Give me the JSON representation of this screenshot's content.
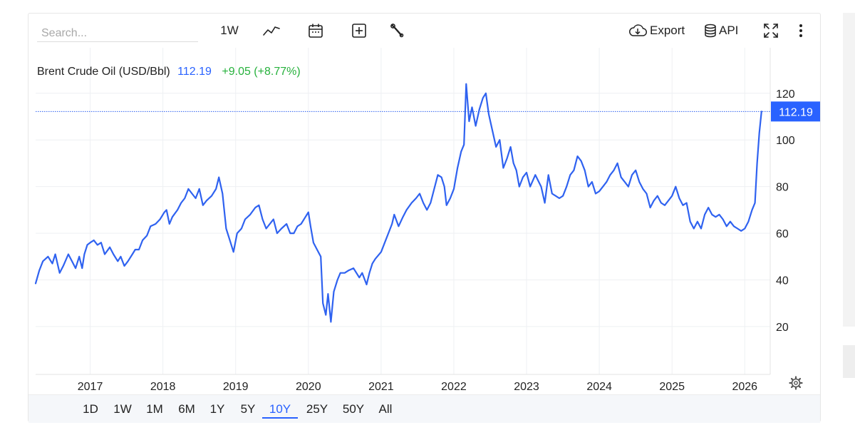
{
  "toolbar": {
    "search_placeholder": "Search...",
    "interval_label": "1W",
    "export_label": "Export",
    "api_label": "API",
    "icons": [
      "line-chart-icon",
      "calendar-icon",
      "add-square-icon",
      "wrench-icon",
      "cloud-download-icon",
      "database-icon",
      "fullscreen-icon",
      "more-vertical-icon"
    ]
  },
  "legend": {
    "name": "Brent Crude Oil (USD/Bbl)",
    "last": "112.19",
    "change": "+9.05 (+8.77%)"
  },
  "price_tag": "112.19",
  "ranges": {
    "items": [
      "1D",
      "1W",
      "1M",
      "6M",
      "1Y",
      "5Y",
      "10Y",
      "25Y",
      "50Y",
      "All"
    ],
    "active": "10Y"
  },
  "colors": {
    "line": "#2f62f0",
    "price_tag_bg": "#2962ff",
    "change_positive": "#26b13c",
    "last_value": "#2962ff",
    "grid": "#eef0f3"
  },
  "chart_data": {
    "type": "line",
    "title": "Brent Crude Oil (USD/Bbl)",
    "xlabel": "",
    "ylabel": "",
    "x_tick_labels": [
      "2017",
      "2018",
      "2019",
      "2020",
      "2021",
      "2022",
      "2023",
      "2024",
      "2025",
      "2026"
    ],
    "y_tick_labels": [
      "20",
      "40",
      "60",
      "80",
      "100",
      "120"
    ],
    "xlim": [
      2016.25,
      2026.35
    ],
    "ylim": [
      -0.5,
      139.5
    ],
    "grid": true,
    "last_value_line": 112.19,
    "series": [
      {
        "name": "Brent Crude Oil (USD/Bbl)",
        "points": [
          [
            2016.25,
            38.5
          ],
          [
            2016.3,
            44
          ],
          [
            2016.35,
            48
          ],
          [
            2016.42,
            50
          ],
          [
            2016.48,
            47
          ],
          [
            2016.52,
            51
          ],
          [
            2016.58,
            43
          ],
          [
            2016.63,
            46
          ],
          [
            2016.7,
            51
          ],
          [
            2016.75,
            48
          ],
          [
            2016.8,
            45
          ],
          [
            2016.85,
            50
          ],
          [
            2016.89,
            45
          ],
          [
            2016.92,
            51
          ],
          [
            2016.96,
            55
          ],
          [
            2017.0,
            56
          ],
          [
            2017.05,
            57
          ],
          [
            2017.1,
            55
          ],
          [
            2017.15,
            56
          ],
          [
            2017.2,
            51
          ],
          [
            2017.27,
            54
          ],
          [
            2017.32,
            51
          ],
          [
            2017.38,
            48
          ],
          [
            2017.42,
            50
          ],
          [
            2017.47,
            46
          ],
          [
            2017.52,
            48
          ],
          [
            2017.58,
            51
          ],
          [
            2017.62,
            53
          ],
          [
            2017.67,
            53
          ],
          [
            2017.72,
            57
          ],
          [
            2017.78,
            59
          ],
          [
            2017.83,
            63
          ],
          [
            2017.9,
            64
          ],
          [
            2017.96,
            66
          ],
          [
            2018.02,
            69
          ],
          [
            2018.05,
            70
          ],
          [
            2018.09,
            64
          ],
          [
            2018.13,
            67
          ],
          [
            2018.2,
            70
          ],
          [
            2018.25,
            73
          ],
          [
            2018.3,
            75
          ],
          [
            2018.35,
            79
          ],
          [
            2018.4,
            77
          ],
          [
            2018.45,
            75
          ],
          [
            2018.5,
            79
          ],
          [
            2018.55,
            72
          ],
          [
            2018.6,
            74
          ],
          [
            2018.67,
            76
          ],
          [
            2018.73,
            79
          ],
          [
            2018.77,
            84
          ],
          [
            2018.82,
            77
          ],
          [
            2018.87,
            62
          ],
          [
            2018.92,
            57
          ],
          [
            2018.97,
            52
          ],
          [
            2019.02,
            60
          ],
          [
            2019.08,
            62
          ],
          [
            2019.13,
            66
          ],
          [
            2019.2,
            68
          ],
          [
            2019.27,
            71
          ],
          [
            2019.32,
            72
          ],
          [
            2019.37,
            66
          ],
          [
            2019.42,
            62
          ],
          [
            2019.47,
            64
          ],
          [
            2019.52,
            66
          ],
          [
            2019.57,
            60
          ],
          [
            2019.63,
            62
          ],
          [
            2019.7,
            64
          ],
          [
            2019.75,
            60
          ],
          [
            2019.8,
            60
          ],
          [
            2019.85,
            63
          ],
          [
            2019.9,
            64
          ],
          [
            2019.96,
            67
          ],
          [
            2020.0,
            69
          ],
          [
            2020.03,
            63
          ],
          [
            2020.07,
            56
          ],
          [
            2020.12,
            53
          ],
          [
            2020.17,
            50
          ],
          [
            2020.2,
            30
          ],
          [
            2020.24,
            25
          ],
          [
            2020.27,
            34
          ],
          [
            2020.31,
            22
          ],
          [
            2020.35,
            35
          ],
          [
            2020.4,
            40
          ],
          [
            2020.44,
            43
          ],
          [
            2020.5,
            43
          ],
          [
            2020.55,
            44
          ],
          [
            2020.62,
            45
          ],
          [
            2020.7,
            41
          ],
          [
            2020.74,
            43
          ],
          [
            2020.8,
            38
          ],
          [
            2020.84,
            43
          ],
          [
            2020.88,
            47
          ],
          [
            2020.92,
            49
          ],
          [
            2021.0,
            52
          ],
          [
            2021.05,
            56
          ],
          [
            2021.1,
            60
          ],
          [
            2021.15,
            64
          ],
          [
            2021.18,
            68
          ],
          [
            2021.24,
            63
          ],
          [
            2021.3,
            67
          ],
          [
            2021.35,
            70
          ],
          [
            2021.42,
            73
          ],
          [
            2021.48,
            75
          ],
          [
            2021.53,
            77
          ],
          [
            2021.58,
            73
          ],
          [
            2021.63,
            70
          ],
          [
            2021.68,
            73
          ],
          [
            2021.73,
            79
          ],
          [
            2021.78,
            85
          ],
          [
            2021.83,
            84
          ],
          [
            2021.87,
            80
          ],
          [
            2021.9,
            72
          ],
          [
            2021.95,
            75
          ],
          [
            2022.0,
            79
          ],
          [
            2022.05,
            88
          ],
          [
            2022.1,
            95
          ],
          [
            2022.14,
            98
          ],
          [
            2022.17,
            124
          ],
          [
            2022.21,
            108
          ],
          [
            2022.25,
            114
          ],
          [
            2022.3,
            106
          ],
          [
            2022.35,
            113
          ],
          [
            2022.4,
            118
          ],
          [
            2022.44,
            120
          ],
          [
            2022.48,
            111
          ],
          [
            2022.53,
            104
          ],
          [
            2022.58,
            97
          ],
          [
            2022.63,
            100
          ],
          [
            2022.68,
            88
          ],
          [
            2022.73,
            92
          ],
          [
            2022.78,
            97
          ],
          [
            2022.82,
            90
          ],
          [
            2022.86,
            87
          ],
          [
            2022.9,
            80
          ],
          [
            2022.95,
            84
          ],
          [
            2023.0,
            86
          ],
          [
            2023.05,
            80
          ],
          [
            2023.12,
            85
          ],
          [
            2023.2,
            80
          ],
          [
            2023.25,
            73
          ],
          [
            2023.3,
            85
          ],
          [
            2023.35,
            77
          ],
          [
            2023.4,
            76
          ],
          [
            2023.45,
            75
          ],
          [
            2023.5,
            76
          ],
          [
            2023.55,
            80
          ],
          [
            2023.6,
            85
          ],
          [
            2023.65,
            87
          ],
          [
            2023.7,
            93
          ],
          [
            2023.75,
            91
          ],
          [
            2023.8,
            87
          ],
          [
            2023.85,
            80
          ],
          [
            2023.9,
            82
          ],
          [
            2023.95,
            77
          ],
          [
            2024.0,
            78
          ],
          [
            2024.05,
            80
          ],
          [
            2024.1,
            82
          ],
          [
            2024.15,
            85
          ],
          [
            2024.2,
            87
          ],
          [
            2024.25,
            90
          ],
          [
            2024.3,
            84
          ],
          [
            2024.35,
            82
          ],
          [
            2024.4,
            80
          ],
          [
            2024.45,
            85
          ],
          [
            2024.5,
            87
          ],
          [
            2024.55,
            82
          ],
          [
            2024.6,
            79
          ],
          [
            2024.65,
            77
          ],
          [
            2024.7,
            71
          ],
          [
            2024.75,
            74
          ],
          [
            2024.8,
            76
          ],
          [
            2024.85,
            73
          ],
          [
            2024.9,
            72
          ],
          [
            2024.95,
            74
          ],
          [
            2025.0,
            76
          ],
          [
            2025.05,
            80
          ],
          [
            2025.1,
            75
          ],
          [
            2025.15,
            72
          ],
          [
            2025.2,
            73
          ],
          [
            2025.25,
            65
          ],
          [
            2025.3,
            62
          ],
          [
            2025.35,
            65
          ],
          [
            2025.4,
            62
          ],
          [
            2025.45,
            68
          ],
          [
            2025.5,
            71
          ],
          [
            2025.55,
            68
          ],
          [
            2025.6,
            67
          ],
          [
            2025.65,
            68
          ],
          [
            2025.7,
            66
          ],
          [
            2025.75,
            63
          ],
          [
            2025.8,
            65
          ],
          [
            2025.85,
            63
          ],
          [
            2025.9,
            62
          ],
          [
            2025.95,
            61
          ],
          [
            2026.0,
            62
          ],
          [
            2026.05,
            65
          ],
          [
            2026.1,
            70
          ],
          [
            2026.14,
            73
          ],
          [
            2026.17,
            90
          ],
          [
            2026.2,
            103
          ],
          [
            2026.23,
            112.19
          ]
        ]
      }
    ]
  }
}
